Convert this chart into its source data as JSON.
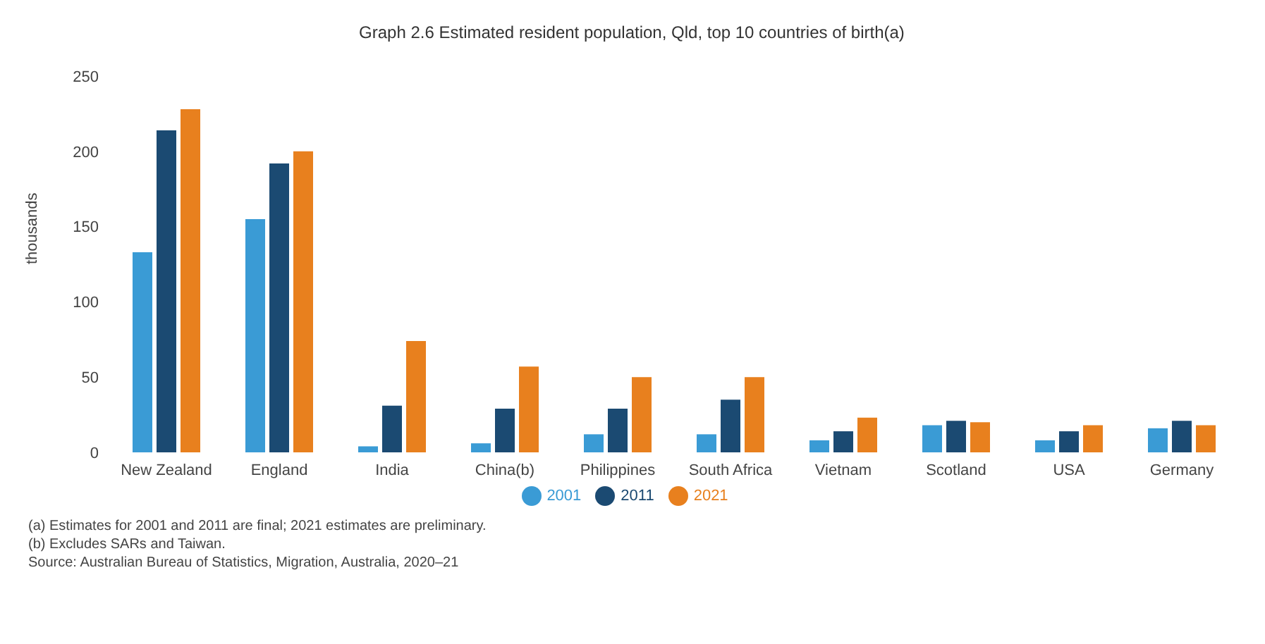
{
  "chart_data": {
    "type": "bar",
    "title": "Graph 2.6 Estimated resident population, Qld, top 10 countries of birth(a)",
    "ylabel": "thousands",
    "categories": [
      "New Zealand",
      "England",
      "India",
      "China(b)",
      "Philippines",
      "South Africa",
      "Vietnam",
      "Scotland",
      "USA",
      "Germany"
    ],
    "series": [
      {
        "name": "2001",
        "color": "#3a9bd5",
        "values": [
          133,
          155,
          4,
          6,
          12,
          12,
          8,
          18,
          8,
          16
        ]
      },
      {
        "name": "2011",
        "color": "#1b4a72",
        "values": [
          214,
          192,
          31,
          29,
          29,
          35,
          14,
          21,
          14,
          21
        ]
      },
      {
        "name": "2021",
        "color": "#e8801e",
        "values": [
          228,
          200,
          74,
          57,
          50,
          50,
          23,
          20,
          18,
          18
        ]
      }
    ],
    "ylim": [
      0,
      250
    ],
    "yticks": [
      0,
      50,
      100,
      150,
      200,
      250
    ],
    "grid": false,
    "legend": "bottom",
    "annotations": [
      "(a) Estimates for 2001 and 2011 are final; 2021 estimates are preliminary.",
      "(b) Excludes SARs and Taiwan.",
      "Source: Australian Bureau of Statistics, Migration, Australia, 2020–21"
    ]
  }
}
